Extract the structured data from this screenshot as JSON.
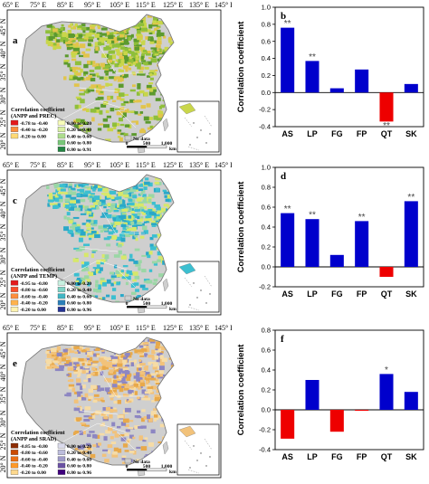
{
  "maps": [
    {
      "id": "a",
      "panel_label": "a",
      "lon_ticks": [
        "65° E",
        "75° E",
        "85° E",
        "95° E",
        "105° E",
        "115° E",
        "125° E",
        "135° E",
        "145° E"
      ],
      "lat_ticks": [
        "45° N",
        "40° N",
        "35° N",
        "30° N",
        "25° N",
        "20° N"
      ],
      "legend_title": [
        "Correlation coefficient",
        "(ANPP and PREC)"
      ],
      "legend_left": [
        "-0.78 to -0.40",
        "-0.40 to -0.20",
        "-0.20 to 0.00"
      ],
      "legend_right": [
        "0.00 to 0.20",
        "0.20 to 0.40",
        "0.40 to 0.60",
        "0.60 to 0.80",
        "0.80 to 0.91"
      ],
      "colors_left": [
        "#e31a1c",
        "#fd8d3c",
        "#fed976"
      ],
      "colors_right": [
        "#f7fcb9",
        "#d9f0a3",
        "#addd8e",
        "#78c679",
        "#238443"
      ],
      "nodata_label": "No data",
      "scale": [
        "0",
        "500",
        "1,000",
        "km"
      ],
      "fill": [
        "#c9d64a",
        "#8fbf3a",
        "#e2c44b",
        "#5c9a2e"
      ]
    },
    {
      "id": "c",
      "panel_label": "c",
      "lon_ticks": [
        "65° E",
        "75° E",
        "85° E",
        "95° E",
        "105° E",
        "115° E",
        "125° E",
        "135° E",
        "145° E"
      ],
      "lat_ticks": [
        "45° N",
        "40° N",
        "35° N",
        "30° N",
        "25° N",
        "20° N"
      ],
      "legend_title": [
        "Correlation coefficient",
        "(ANPP and TEMP)"
      ],
      "legend_left": [
        "-0.95 to -0.80",
        "-0.80 to -0.60",
        "-0.60 to -0.40",
        "-0.40 to -0.20",
        "-0.20 to 0.00"
      ],
      "legend_right": [
        "0.00 to 0.20",
        "0.20 to 0.40",
        "0.40 to 0.60",
        "0.60 to 0.80",
        "0.80 to 0.96"
      ],
      "colors_left": [
        "#e31a1c",
        "#fc4e2a",
        "#fd8d3c",
        "#feb24c",
        "#fff3b0"
      ],
      "colors_right": [
        "#c7f0e0",
        "#7fd4c6",
        "#41b6c4",
        "#2c7fb8",
        "#253494"
      ],
      "nodata_label": "No data",
      "scale": [
        "0",
        "500",
        "1,000",
        "km"
      ],
      "fill": [
        "#3cbfd0",
        "#9ad7a5",
        "#d7e86a",
        "#2aa8c8"
      ]
    },
    {
      "id": "e",
      "panel_label": "e",
      "lon_ticks": [
        "65° E",
        "75° E",
        "85° E",
        "95° E",
        "105° E",
        "115° E",
        "125° E",
        "135° E",
        "145° E"
      ],
      "lat_ticks": [
        "45° N",
        "40° N",
        "35° N",
        "30° N",
        "25° N",
        "20° N"
      ],
      "legend_title": [
        "Correlation coefficient",
        "(ANPP and SRAD)"
      ],
      "legend_left": [
        "-0.85 to -0.80",
        "-0.80 to -0.60",
        "-0.60 to -0.40",
        "-0.40 to -0.20",
        "-0.20 to 0.00"
      ],
      "legend_right": [
        "0.00 to 0.20",
        "0.20 to 0.40",
        "0.40 to 0.60",
        "0.60 to 0.80",
        "0.80 to 0.96"
      ],
      "colors_left": [
        "#8c2d04",
        "#cc4c02",
        "#ec7014",
        "#fe9929",
        "#fed98e"
      ],
      "colors_right": [
        "#dadaeb",
        "#bcbddc",
        "#9e9ac8",
        "#6a51a3",
        "#3f007d"
      ],
      "nodata_label": "No data",
      "scale": [
        "0",
        "500",
        "1,000",
        "km"
      ],
      "fill": [
        "#f2c27a",
        "#e8a94a",
        "#8d86c2",
        "#f6dca6"
      ]
    }
  ],
  "chart_data": [
    {
      "type": "bar",
      "panel_label": "b",
      "categories": [
        "AS",
        "LP",
        "FG",
        "FP",
        "QT",
        "SK"
      ],
      "values": [
        0.76,
        0.37,
        0.05,
        0.27,
        -0.34,
        0.1
      ],
      "significance": [
        "**",
        "**",
        "",
        "",
        "**",
        ""
      ],
      "ylabel": "Correlation coefficient",
      "ylim": [
        -0.4,
        1.0
      ],
      "yticks": [
        "-0.4",
        "-0.2",
        "0.0",
        "0.2",
        "0.4",
        "0.6",
        "0.8",
        "1.0"
      ],
      "ytick_values": [
        -0.4,
        -0.2,
        0.0,
        0.2,
        0.4,
        0.6,
        0.8,
        1.0
      ],
      "positive_color": "#0000cc",
      "negative_color": "#ee0000"
    },
    {
      "type": "bar",
      "panel_label": "d",
      "categories": [
        "AS",
        "LP",
        "FG",
        "FP",
        "QT",
        "SK"
      ],
      "values": [
        0.54,
        0.48,
        0.12,
        0.46,
        -0.1,
        0.66
      ],
      "significance": [
        "**",
        "**",
        "",
        "**",
        "",
        "**"
      ],
      "ylabel": "Correlation coefficient",
      "ylim": [
        -0.2,
        1.0
      ],
      "yticks": [
        "-0.2",
        "0.0",
        "0.2",
        "0.4",
        "0.6",
        "0.8",
        "1.0"
      ],
      "ytick_values": [
        -0.2,
        0.0,
        0.2,
        0.4,
        0.6,
        0.8,
        1.0
      ],
      "positive_color": "#0000cc",
      "negative_color": "#ee0000"
    },
    {
      "type": "bar",
      "panel_label": "f",
      "categories": [
        "AS",
        "LP",
        "FG",
        "FP",
        "QT",
        "SK"
      ],
      "values": [
        -0.29,
        0.3,
        -0.22,
        -0.01,
        0.36,
        0.18
      ],
      "significance": [
        "",
        "",
        "",
        "",
        "*",
        ""
      ],
      "ylabel": "Correlation coefficient",
      "ylim": [
        -0.4,
        0.8
      ],
      "yticks": [
        "-0.4",
        "-0.2",
        "0.0",
        "0.2",
        "0.4",
        "0.6",
        "0.8"
      ],
      "ytick_values": [
        -0.4,
        -0.2,
        0.0,
        0.2,
        0.4,
        0.6,
        0.8
      ],
      "positive_color": "#0000cc",
      "negative_color": "#ee0000"
    }
  ]
}
